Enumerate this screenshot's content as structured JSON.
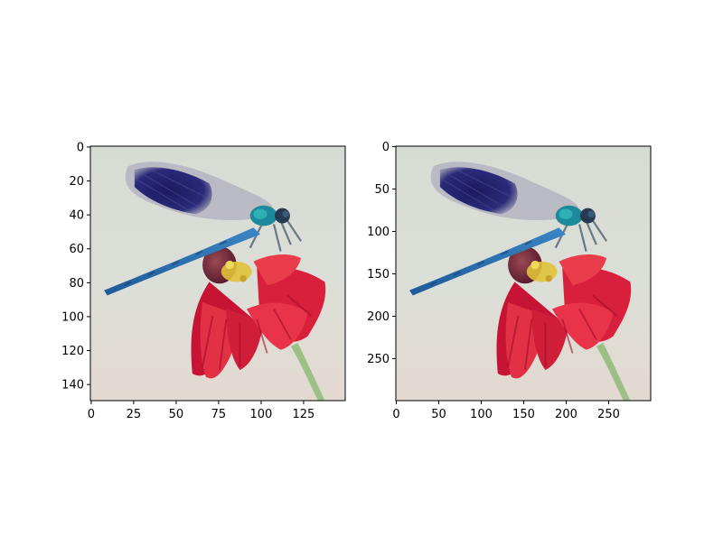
{
  "figure": {
    "panels": [
      {
        "name": "left",
        "image_resolution": "150x150",
        "x_ticks": [
          "0",
          "25",
          "50",
          "75",
          "100",
          "125"
        ],
        "y_ticks": [
          "0",
          "20",
          "40",
          "60",
          "80",
          "100",
          "120",
          "140"
        ]
      },
      {
        "name": "right",
        "image_resolution": "300x300",
        "x_ticks": [
          "0",
          "50",
          "100",
          "150",
          "200",
          "250"
        ],
        "y_ticks": [
          "0",
          "50",
          "100",
          "150",
          "200",
          "250"
        ]
      }
    ],
    "image_subject": "blue dragonfly (banded demoiselle) perched on a red flower",
    "colors": {
      "background": "#d9dcd4",
      "dragonfly_body": "#2a6fb0",
      "wing_dark": "#24226e",
      "wing_light": "#a9a7b6",
      "flower_red": "#d81f3c",
      "flower_center": "#7a2a3a",
      "pollen": "#e0c23a",
      "stem": "#9cbf86"
    }
  }
}
